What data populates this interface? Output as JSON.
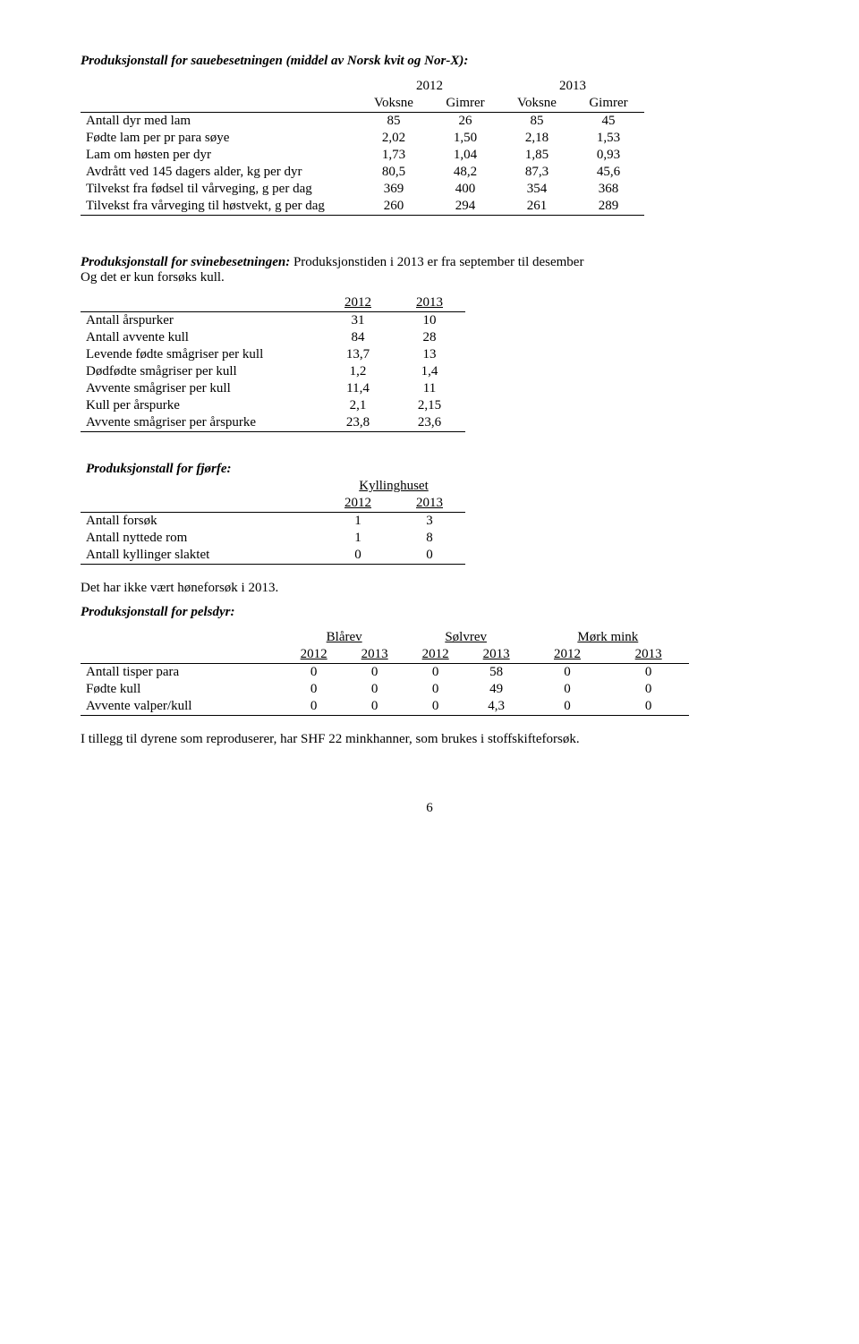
{
  "sheep": {
    "title": "Produksjonstall for sauebesetningen (middel av Norsk kvit og Nor-X):",
    "years": [
      "2012",
      "2013"
    ],
    "sub": [
      "Voksne",
      "Gimrer",
      "Voksne",
      "Gimrer"
    ],
    "rows": [
      {
        "label": "Antall dyr med lam",
        "v": [
          "85",
          "26",
          "85",
          "45"
        ]
      },
      {
        "label": "Fødte lam per pr para søye",
        "v": [
          "2,02",
          "1,50",
          "2,18",
          "1,53"
        ]
      },
      {
        "label": "Lam om høsten per dyr",
        "v": [
          "1,73",
          "1,04",
          "1,85",
          "0,93"
        ]
      },
      {
        "label": "Avdrått ved 145 dagers alder, kg per dyr",
        "v": [
          "80,5",
          "48,2",
          "87,3",
          "45,6"
        ]
      },
      {
        "label": "Tilvekst fra fødsel til vårveging, g per dag",
        "v": [
          "369",
          "400",
          "354",
          "368"
        ]
      },
      {
        "label": "Tilvekst fra vårveging til høstvekt, g per dag",
        "v": [
          "260",
          "294",
          "261",
          "289"
        ]
      }
    ]
  },
  "swine": {
    "intro_label": "Produksjonstall for svinebesetningen:",
    "intro_rest": "  Produksjonstiden i 2013 er fra september til desember",
    "intro_line2": "Og det er kun forsøks kull.",
    "years": [
      "2012",
      "2013"
    ],
    "rows": [
      {
        "label": "Antall årspurker",
        "v": [
          "31",
          "10"
        ]
      },
      {
        "label": "Antall avvente kull",
        "v": [
          "84",
          "28"
        ]
      },
      {
        "label": "Levende fødte smågriser per kull",
        "v": [
          "13,7",
          "13"
        ]
      },
      {
        "label": "Dødfødte smågriser per kull",
        "v": [
          "1,2",
          "1,4"
        ]
      },
      {
        "label": "Avvente smågriser per kull",
        "v": [
          "11,4",
          "11"
        ]
      },
      {
        "label": "Kull per årspurke",
        "v": [
          "2,1",
          "2,15"
        ]
      },
      {
        "label": "Avvente smågriser per årspurke",
        "v": [
          "23,8",
          "23,6"
        ]
      }
    ]
  },
  "poultry": {
    "title": "Produksjonstall for fjørfe:",
    "house": "Kyllinghuset",
    "years": [
      "2012",
      "2013"
    ],
    "rows": [
      {
        "label": "Antall forsøk",
        "v": [
          "1",
          "3"
        ]
      },
      {
        "label": "Antall nyttede rom",
        "v": [
          "1",
          "8"
        ]
      },
      {
        "label": "Antall kyllinger slaktet",
        "v": [
          "0",
          "0"
        ]
      }
    ],
    "note": "Det har ikke vært høneforsøk i 2013."
  },
  "fur": {
    "title": "Produksjonstall for pelsdyr:",
    "groups": [
      "Blårev",
      "Sølvrev",
      "Mørk mink"
    ],
    "years": [
      "2012",
      "2013",
      "2012",
      "2013",
      "2012",
      "2013"
    ],
    "rows": [
      {
        "label": "Antall tisper para",
        "v": [
          "0",
          "0",
          "0",
          "58",
          "0",
          "0"
        ]
      },
      {
        "label": "Fødte kull",
        "v": [
          "0",
          "0",
          "0",
          "49",
          "0",
          "0"
        ]
      },
      {
        "label": "Avvente valper/kull",
        "v": [
          "0",
          "0",
          "0",
          "4,3",
          "0",
          "0"
        ]
      }
    ],
    "note": "I tillegg til dyrene som reproduserer, har SHF 22 minkhanner, som brukes i stoffskifteforsøk."
  },
  "pagenum": "6"
}
